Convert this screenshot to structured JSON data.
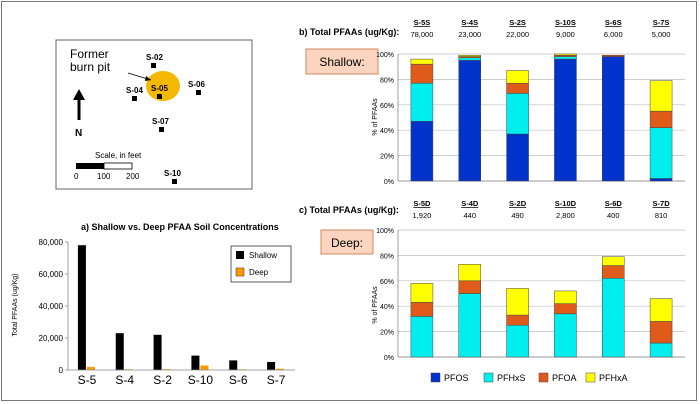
{
  "map": {
    "burn_pit_label_line1": "Former",
    "burn_pit_label_line2": "burn pit",
    "north_label": "N",
    "scale_label": "Scale, in feet",
    "scale_ticks": [
      "0",
      "100",
      "200"
    ],
    "samples": [
      {
        "name": "S-02"
      },
      {
        "name": "S-04"
      },
      {
        "name": "S-05"
      },
      {
        "name": "S-06"
      },
      {
        "name": "S-07"
      },
      {
        "name": "S-10"
      }
    ],
    "burn_pit_color": "#F5B800"
  },
  "panel_b": {
    "title": "b) Total PFAAs (ug/Kg):",
    "badge": "Shallow:",
    "y_axis_label": "% of PFAAs",
    "columns": [
      {
        "site": "S-5S",
        "total": "78,000"
      },
      {
        "site": "S-4S",
        "total": "23,000"
      },
      {
        "site": "S-2S",
        "total": "22,000"
      },
      {
        "site": "S-10S",
        "total": "9,000"
      },
      {
        "site": "S-6S",
        "total": "6,000"
      },
      {
        "site": "S-7S",
        "total": "5,000"
      }
    ]
  },
  "panel_c": {
    "title": "c) Total PFAAs (ug/Kg):",
    "badge": "Deep:",
    "y_axis_label": "% of PFAAs",
    "columns": [
      {
        "site": "S-5D",
        "total": "1,920"
      },
      {
        "site": "S-4D",
        "total": "440"
      },
      {
        "site": "S-2D",
        "total": "490"
      },
      {
        "site": "S-10D",
        "total": "2,800"
      },
      {
        "site": "S-6D",
        "total": "400"
      },
      {
        "site": "S-7D",
        "total": "810"
      }
    ]
  },
  "chart_data": [
    {
      "type": "bar",
      "title": "a) Shallow vs. Deep PFAA Soil Concentrations",
      "ylabel": "Total PFAAs (ug/Kg)",
      "xlabel": "",
      "categories": [
        "S-5",
        "S-4",
        "S-2",
        "S-10",
        "S-6",
        "S-7"
      ],
      "ylim": [
        0,
        80000
      ],
      "yticks": [
        "0",
        "20,000",
        "40,000",
        "60,000",
        "80,000"
      ],
      "ytick_values": [
        0,
        20000,
        40000,
        60000,
        80000
      ],
      "legend_position": "top-right",
      "series": [
        {
          "name": "Shallow",
          "color": "#000000",
          "values": [
            78000,
            23000,
            22000,
            9000,
            6000,
            5000
          ]
        },
        {
          "name": "Deep",
          "color": "#FF9900",
          "values": [
            1920,
            440,
            490,
            2800,
            400,
            810
          ]
        }
      ]
    },
    {
      "type": "bar",
      "stacked": true,
      "title": "b) Total PFAAs (ug/Kg):",
      "ylabel": "% of PFAAs",
      "categories": [
        "S-5S",
        "S-4S",
        "S-2S",
        "S-10S",
        "S-6S",
        "S-7S"
      ],
      "ylim": [
        0,
        100
      ],
      "yticks": [
        "0%",
        "20%",
        "40%",
        "60%",
        "80%",
        "100%"
      ],
      "ytick_values": [
        0,
        20,
        40,
        60,
        80,
        100
      ],
      "grid": true,
      "series": [
        {
          "name": "PFOS",
          "color": "#0033CC",
          "values": [
            47,
            95,
            37,
            96,
            98,
            2
          ]
        },
        {
          "name": "PFHxS",
          "color": "#00EEEE",
          "values": [
            30,
            2,
            32,
            2,
            0,
            40
          ]
        },
        {
          "name": "PFOA",
          "color": "#E05A1A",
          "values": [
            15,
            1,
            8,
            1,
            1,
            13
          ]
        },
        {
          "name": "PFHxA",
          "color": "#FFFF00",
          "values": [
            4,
            1,
            10,
            1,
            0,
            24
          ]
        }
      ]
    },
    {
      "type": "bar",
      "stacked": true,
      "title": "c) Total PFAAs (ug/Kg):",
      "ylabel": "% of PFAAs",
      "categories": [
        "S-5D",
        "S-4D",
        "S-2D",
        "S-10D",
        "S-6D",
        "S-7D"
      ],
      "ylim": [
        0,
        100
      ],
      "yticks": [
        "0%",
        "20%",
        "40%",
        "60%",
        "80%",
        "100%"
      ],
      "ytick_values": [
        0,
        20,
        40,
        60,
        80,
        100
      ],
      "grid": true,
      "legend_position": "bottom",
      "series": [
        {
          "name": "PFOS",
          "color": "#0033CC",
          "values": [
            0,
            0,
            0,
            0,
            0,
            0
          ]
        },
        {
          "name": "PFHxS",
          "color": "#00EEEE",
          "values": [
            32,
            50,
            25,
            34,
            62,
            11
          ]
        },
        {
          "name": "PFOA",
          "color": "#E05A1A",
          "values": [
            11,
            10,
            8,
            8,
            10,
            17
          ]
        },
        {
          "name": "PFHxA",
          "color": "#FFFF00",
          "values": [
            15,
            13,
            21,
            10,
            7,
            18
          ]
        }
      ]
    }
  ]
}
